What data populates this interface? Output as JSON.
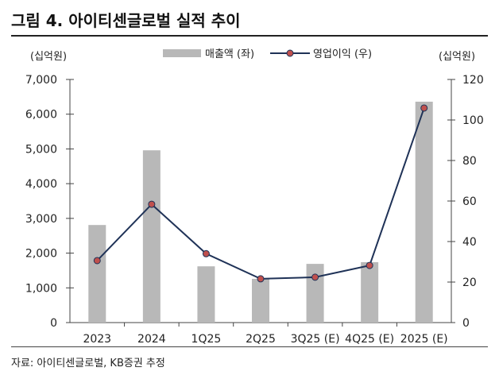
{
  "title": "그림 4. 아이티센글로벌 실적 추이",
  "source": "자료: 아이티센글로벌, KB증권 추정",
  "colors": {
    "bar": "#b8b8b8",
    "line": "#1f3257",
    "marker": "#c0504d"
  },
  "chart_data": {
    "type": "bar+line",
    "categories": [
      "2023",
      "2024",
      "1Q25",
      "2Q25",
      "3Q25 (E)",
      "4Q25 (E)",
      "2025 (E)"
    ],
    "series": [
      {
        "name": "매출액 (좌)",
        "type": "bar",
        "axis": "left",
        "values": [
          2810,
          4960,
          1620,
          1260,
          1690,
          1740,
          6360
        ]
      },
      {
        "name": "영업이익 (우)",
        "type": "line",
        "axis": "right",
        "values": [
          30.6,
          58.4,
          34.0,
          21.6,
          22.4,
          28.2,
          105.9
        ]
      }
    ],
    "left_axis": {
      "label": "(십억원)",
      "ylim": [
        0,
        7000
      ],
      "ticks": [
        "0",
        "1,000",
        "2,000",
        "3,000",
        "4,000",
        "5,000",
        "6,000",
        "7,000"
      ]
    },
    "right_axis": {
      "label": "(십억원)",
      "ylim": [
        0,
        120
      ],
      "ticks": [
        "0",
        "20",
        "40",
        "60",
        "80",
        "100",
        "120"
      ]
    },
    "legend_position": "top-center",
    "grid": false
  }
}
